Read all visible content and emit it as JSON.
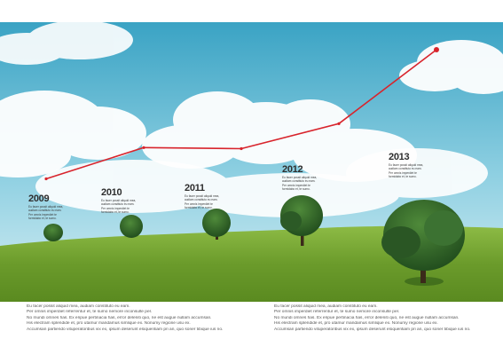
{
  "chart_data": {
    "type": "line",
    "categories": [
      "2009",
      "2010",
      "2011",
      "2012",
      "2013"
    ],
    "series": [
      {
        "values": [
          20,
          50,
          49,
          73,
          144
        ]
      }
    ],
    "ylim": [
      0,
      150
    ],
    "grid": false,
    "colors": {
      "line": "#d8242c",
      "marker": "#d8242c"
    },
    "annotations": [
      {
        "year": "2009",
        "lines": [
          "Eu facer possit aliquid mea,",
          "audiam constituto eu eam.",
          "Per omnis imperdiet te",
          "formidabo et, te sumo."
        ]
      },
      {
        "year": "2010",
        "lines": [
          "Eu facer possit aliquid mea,",
          "audiam constituto eu eam.",
          "Per omnis imperdiet te",
          "formidabo et, te sumo."
        ]
      },
      {
        "year": "2011",
        "lines": [
          "Eu facer possit aliquid mea,",
          "audiam constituto eu eam.",
          "Per omnis imperdiet te",
          "formidabo et, te sumo."
        ]
      },
      {
        "year": "2012",
        "lines": [
          "Eu facer possit aliquid mea,",
          "audiam constituto eu eam.",
          "Per omnis imperdiet te",
          "formidabo et, te sumo."
        ]
      },
      {
        "year": "2013",
        "lines": [
          "Eu facer possit aliquid mea,",
          "audiam constituto eu eam.",
          "Per omnis imperdiet te",
          "formidabo et, te sumo."
        ]
      }
    ]
  },
  "footer": {
    "columns": [
      {
        "lines": [
          "Eu facer possit aliquid mea, audiam constituto eu eam.",
          "Per omnis imperdiet referrentur et, te sumo nemore inconsulte per.",
          "No mundi omnes has. Ex eripue pertinacia has, error deleniti quo, ne est augue nullam accumsan.",
          "His electram splendide et, pro utamur mandamus simlique ex. Nonumy regione usu ex.",
          "Accumsan partiendo vituperatoribus vix ex, ipsum deserunt eloquentiam pri an, quo soner tibique ius no."
        ]
      },
      {
        "lines": [
          "Eu facer possit aliquid mea, audiam constituto eu eam.",
          "Per omnis imperdiet referrentur et, te sumo nemore inconsulte per.",
          "No mundi omnes has. Ex eripue pertinacia has, error deleniti quo, ne est augue nullam accumsan.",
          "His electram splendide et, pro utamur mandamus simlique ex. Nonumy regione usu ex.",
          "Accumsan partiendo vituperatoribus vix ex, ipsum deserunt eloquentiam pri an, quo soner tibique ius no."
        ]
      }
    ]
  },
  "scene": {
    "icons": [
      "cloud-icon",
      "tree-icon",
      "grass-hill-icon"
    ],
    "sky_top": "#3aa3c4",
    "sky_bottom": "#c9e8f0",
    "grass_top": "#7fb03a",
    "grass_bottom": "#5d8e22"
  }
}
